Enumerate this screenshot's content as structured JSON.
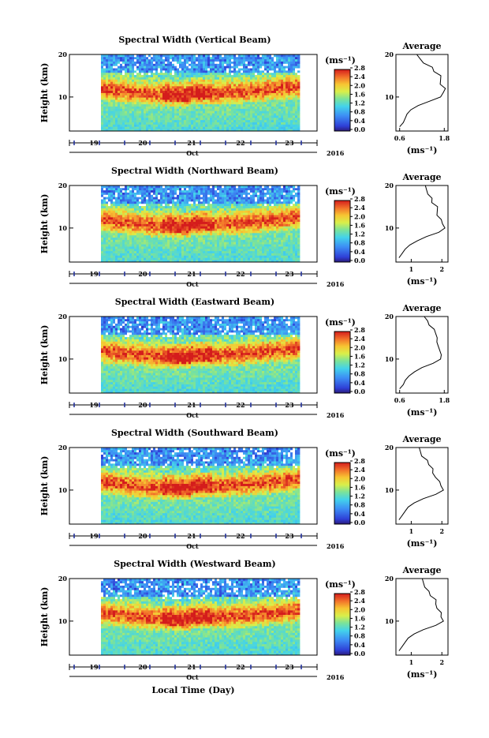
{
  "xlabel": "Local Time (Day)",
  "chart_data": [
    {
      "type": "heatmap",
      "title": "Spectral Width (Vertical Beam)",
      "ylabel": "Height (km)",
      "ylim": [
        2,
        20
      ],
      "y_ticks": [
        "10",
        "20"
      ],
      "x_ticks": [
        "19",
        "20",
        "21",
        "22",
        "23"
      ],
      "x_sublabel": "Oct",
      "year": "2016",
      "colorbar": {
        "unit": "(ms⁻¹)",
        "range": [
          0,
          2.8
        ],
        "ticks": [
          "0.0",
          "0.4",
          "0.8",
          "1.2",
          "1.6",
          "2.0",
          "2.4",
          "2.8"
        ]
      },
      "average": {
        "title": "Average",
        "xlabel": "(ms⁻¹)",
        "x_ticks": [
          "0.6",
          "1.8"
        ],
        "xlim": [
          0.5,
          1.9
        ],
        "heights": [
          3,
          4,
          5,
          6,
          7,
          8,
          9,
          10,
          11,
          12,
          13,
          14,
          15,
          16,
          17,
          18,
          19,
          20
        ],
        "values": [
          0.6,
          0.7,
          0.75,
          0.8,
          0.9,
          1.1,
          1.4,
          1.7,
          1.8,
          1.8,
          1.75,
          1.7,
          1.65,
          1.55,
          1.45,
          1.3,
          1.15,
          1.0
        ]
      }
    },
    {
      "type": "heatmap",
      "title": "Spectral Width (Northward Beam)",
      "ylabel": "Height (km)",
      "ylim": [
        2,
        20
      ],
      "y_ticks": [
        "10",
        "20"
      ],
      "x_ticks": [
        "19",
        "20",
        "21",
        "22",
        "23"
      ],
      "x_sublabel": "Oct",
      "year": "2016",
      "colorbar": {
        "unit": "(ms⁻¹)",
        "range": [
          0,
          2.8
        ],
        "ticks": [
          "0.0",
          "0.4",
          "0.8",
          "1.2",
          "1.6",
          "2.0",
          "2.4",
          "2.8"
        ]
      },
      "average": {
        "title": "Average",
        "xlabel": "(ms⁻¹)",
        "x_ticks": [
          "1",
          "2"
        ],
        "xlim": [
          0.5,
          2.2
        ],
        "heights": [
          3,
          4,
          5,
          6,
          7,
          8,
          9,
          10,
          11,
          12,
          13,
          14,
          15,
          16,
          17,
          18,
          19,
          20
        ],
        "values": [
          0.6,
          0.7,
          0.8,
          0.95,
          1.2,
          1.5,
          1.9,
          2.1,
          2.05,
          1.95,
          1.9,
          1.85,
          1.8,
          1.7,
          1.65,
          1.6,
          1.5,
          1.4
        ]
      }
    },
    {
      "type": "heatmap",
      "title": "Spectral Width (Eastward Beam)",
      "ylabel": "Height (km)",
      "ylim": [
        2,
        20
      ],
      "y_ticks": [
        "10",
        "20"
      ],
      "x_ticks": [
        "19",
        "20",
        "21",
        "22",
        "23"
      ],
      "x_sublabel": "Oct",
      "year": "2016",
      "colorbar": {
        "unit": "(ms⁻¹)",
        "range": [
          0,
          2.8
        ],
        "ticks": [
          "0.0",
          "0.4",
          "0.8",
          "1.2",
          "1.6",
          "2.0",
          "2.4",
          "2.8"
        ]
      },
      "average": {
        "title": "Average",
        "xlabel": "(ms⁻¹)",
        "x_ticks": [
          "0.6",
          "1.8"
        ],
        "xlim": [
          0.5,
          1.9
        ],
        "heights": [
          3,
          4,
          5,
          6,
          7,
          8,
          9,
          10,
          11,
          12,
          13,
          14,
          15,
          16,
          17,
          18,
          19,
          20
        ],
        "values": [
          0.6,
          0.7,
          0.75,
          0.85,
          1.0,
          1.2,
          1.5,
          1.7,
          1.75,
          1.65,
          1.7,
          1.6,
          1.55,
          1.6,
          1.5,
          1.45,
          1.35,
          1.2
        ]
      }
    },
    {
      "type": "heatmap",
      "title": "Spectral Width (Southward Beam)",
      "ylabel": "Height (km)",
      "ylim": [
        2,
        20
      ],
      "y_ticks": [
        "10",
        "20"
      ],
      "x_ticks": [
        "19",
        "20",
        "21",
        "22",
        "23"
      ],
      "x_sublabel": "Oct",
      "year": "2016",
      "colorbar": {
        "unit": "(ms⁻¹)",
        "range": [
          0,
          2.8
        ],
        "ticks": [
          "0.0",
          "0.4",
          "0.8",
          "1.2",
          "1.6",
          "2.0",
          "2.4",
          "2.8"
        ]
      },
      "average": {
        "title": "Average",
        "xlabel": "(ms⁻¹)",
        "x_ticks": [
          "1",
          "2"
        ],
        "xlim": [
          0.5,
          2.2
        ],
        "heights": [
          3,
          4,
          5,
          6,
          7,
          8,
          9,
          10,
          11,
          12,
          13,
          14,
          15,
          16,
          17,
          18,
          19,
          20
        ],
        "values": [
          0.6,
          0.7,
          0.8,
          0.9,
          1.1,
          1.4,
          1.8,
          2.05,
          2.0,
          1.9,
          1.85,
          1.7,
          1.65,
          1.6,
          1.5,
          1.4,
          1.3,
          1.2
        ]
      }
    },
    {
      "type": "heatmap",
      "title": "Spectral Width (Westward Beam)",
      "ylabel": "Height (km)",
      "ylim": [
        2,
        20
      ],
      "y_ticks": [
        "10",
        "20"
      ],
      "x_ticks": [
        "19",
        "20",
        "21",
        "22",
        "23"
      ],
      "x_sublabel": "Oct",
      "year": "2016",
      "colorbar": {
        "unit": "(ms⁻¹)",
        "range": [
          0,
          2.8
        ],
        "ticks": [
          "0.0",
          "0.4",
          "0.8",
          "1.2",
          "1.6",
          "2.0",
          "2.4",
          "2.8"
        ]
      },
      "average": {
        "title": "Average",
        "xlabel": "(ms⁻¹)",
        "x_ticks": [
          "1",
          "2"
        ],
        "xlim": [
          0.5,
          2.2
        ],
        "heights": [
          3,
          4,
          5,
          6,
          7,
          8,
          9,
          10,
          11,
          12,
          13,
          14,
          15,
          16,
          17,
          18,
          19,
          20
        ],
        "values": [
          0.6,
          0.7,
          0.8,
          0.9,
          1.1,
          1.4,
          1.8,
          2.05,
          2.0,
          1.95,
          1.9,
          1.8,
          1.75,
          1.65,
          1.55,
          1.5,
          1.4,
          1.3
        ]
      }
    }
  ]
}
